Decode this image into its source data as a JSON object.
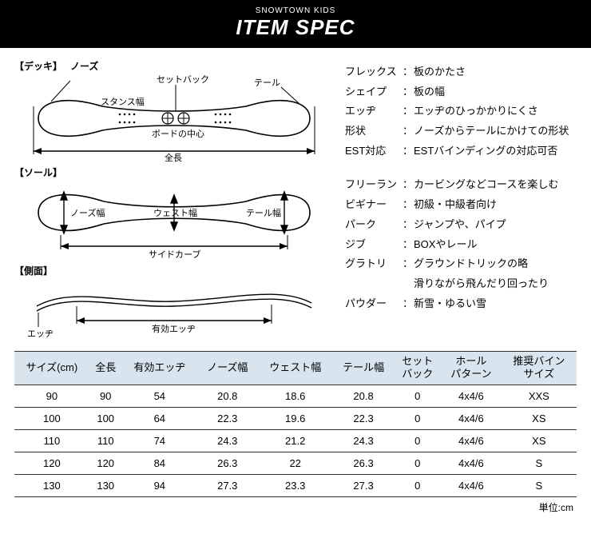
{
  "header": {
    "subtitle": "SNOWTOWN KIDS",
    "title": "ITEM SPEC"
  },
  "diagram_labels": {
    "deck": "【デッキ】",
    "sole": "【ソール】",
    "side": "【側面】",
    "nose": "ノーズ",
    "tail": "テール",
    "setback": "セットバック",
    "stance": "スタンス幅",
    "center": "ボードの中心",
    "length": "全長",
    "nose_w": "ノーズ幅",
    "waist_w": "ウェスト幅",
    "tail_w": "テール幅",
    "sidecurve": "サイドカーブ",
    "eff_edge": "有効エッヂ",
    "edge": "エッヂ"
  },
  "glossary1": [
    {
      "term": "フレックス",
      "def": "板のかたさ"
    },
    {
      "term": "シェイプ",
      "def": "板の幅"
    },
    {
      "term": "エッヂ",
      "def": "エッヂのひっかかりにくさ"
    },
    {
      "term": "形状",
      "def": "ノーズからテールにかけての形状"
    },
    {
      "term": "EST対応",
      "def": "ESTバインディングの対応可否"
    }
  ],
  "glossary2": [
    {
      "term": "フリーラン",
      "def": "カービングなどコースを楽しむ"
    },
    {
      "term": "ビギナー",
      "def": "初級・中級者向け"
    },
    {
      "term": "パーク",
      "def": "ジャンプや、パイプ"
    },
    {
      "term": "ジブ",
      "def": "BOXやレール"
    },
    {
      "term": "グラトリ",
      "def": "グラウンドトリックの略\n滑りながら飛んだり回ったり"
    },
    {
      "term": "パウダー",
      "def": "新雪・ゆるい雪"
    }
  ],
  "table": {
    "columns": [
      "サイズ(cm)",
      "全長",
      "有効エッヂ",
      "ノーズ幅",
      "ウェスト幅",
      "テール幅",
      "セット\nバック",
      "ホール\nパターン",
      "推奨バイン\nサイズ"
    ],
    "rows": [
      [
        "90",
        "90",
        "54",
        "20.8",
        "18.6",
        "20.8",
        "0",
        "4x4/6",
        "XXS"
      ],
      [
        "100",
        "100",
        "64",
        "22.3",
        "19.6",
        "22.3",
        "0",
        "4x4/6",
        "XS"
      ],
      [
        "110",
        "110",
        "74",
        "24.3",
        "21.2",
        "24.3",
        "0",
        "4x4/6",
        "XS"
      ],
      [
        "120",
        "120",
        "84",
        "26.3",
        "22",
        "26.3",
        "0",
        "4x4/6",
        "S"
      ],
      [
        "130",
        "130",
        "94",
        "27.3",
        "23.3",
        "27.3",
        "0",
        "4x4/6",
        "S"
      ]
    ],
    "unit": "単位:cm",
    "header_bg": "#d8e4ee",
    "border_color": "#333333"
  }
}
